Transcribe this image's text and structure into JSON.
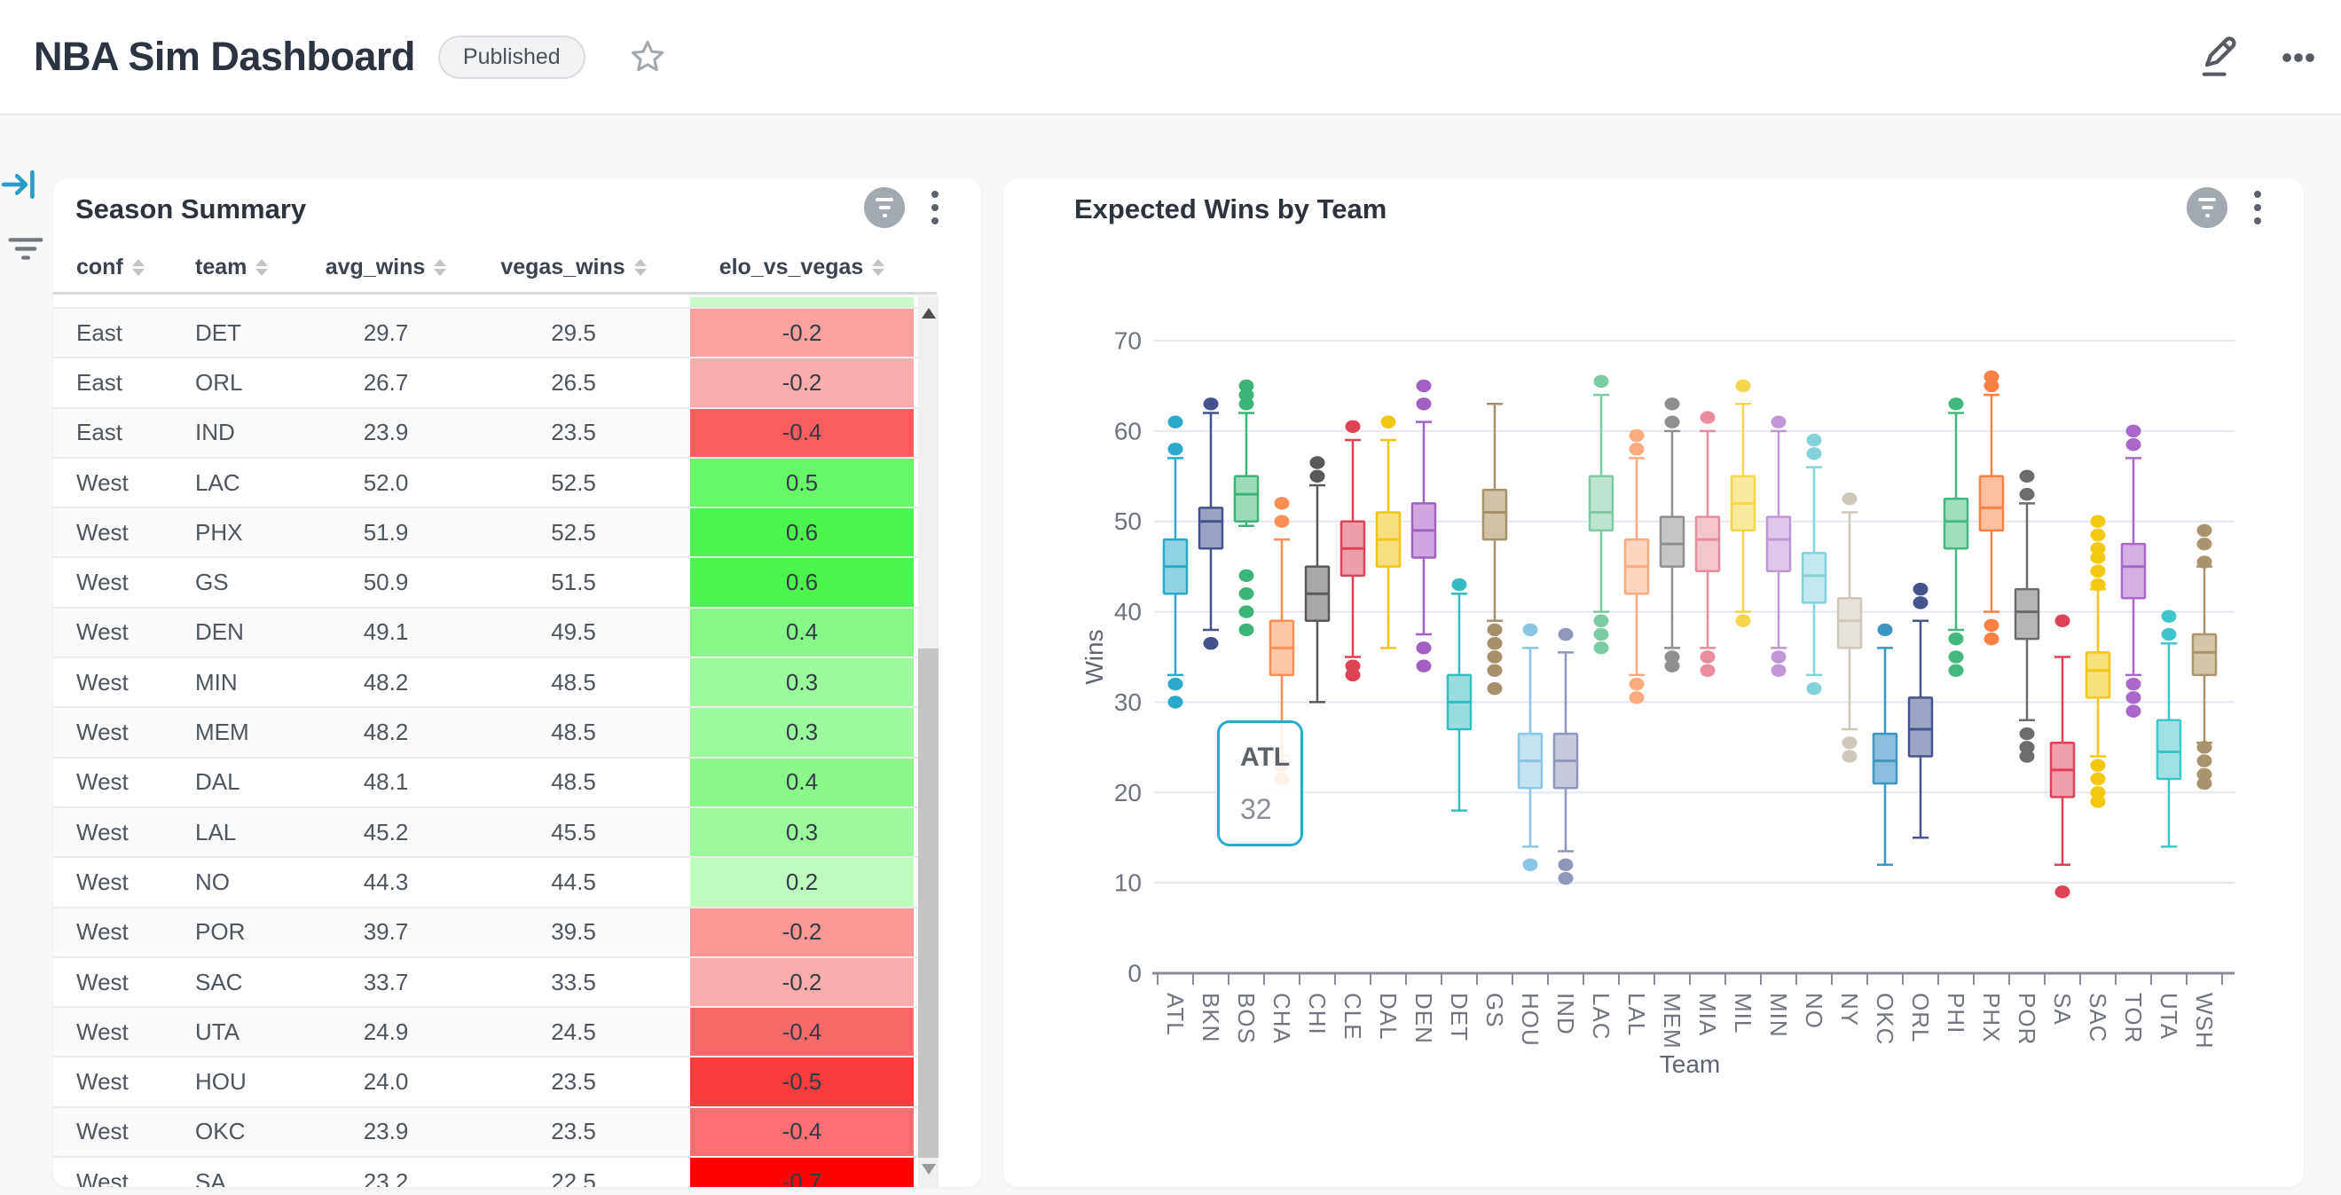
{
  "header": {
    "title": "NBA Sim Dashboard",
    "badge": "Published"
  },
  "table_panel": {
    "title": "Season Summary",
    "columns": [
      {
        "label": "conf"
      },
      {
        "label": "team"
      },
      {
        "label": "avg_wins"
      },
      {
        "label": "vegas_wins"
      },
      {
        "label": "elo_vs_vegas"
      }
    ],
    "partial_top_color": "#c9fac9",
    "rows": [
      {
        "conf": "East",
        "team": "DET",
        "avg_wins": "29.7",
        "vegas_wins": "29.5",
        "elo_vs_vegas": "-0.2",
        "color": "#f9a1a1"
      },
      {
        "conf": "East",
        "team": "ORL",
        "avg_wins": "26.7",
        "vegas_wins": "26.5",
        "elo_vs_vegas": "-0.2",
        "color": "#fbadad"
      },
      {
        "conf": "East",
        "team": "IND",
        "avg_wins": "23.9",
        "vegas_wins": "23.5",
        "elo_vs_vegas": "-0.4",
        "color": "#fa5d5d"
      },
      {
        "conf": "West",
        "team": "LAC",
        "avg_wins": "52.0",
        "vegas_wins": "52.5",
        "elo_vs_vegas": "0.5",
        "color": "#68f768"
      },
      {
        "conf": "West",
        "team": "PHX",
        "avg_wins": "51.9",
        "vegas_wins": "52.5",
        "elo_vs_vegas": "0.6",
        "color": "#4ef44e"
      },
      {
        "conf": "West",
        "team": "GS",
        "avg_wins": "50.9",
        "vegas_wins": "51.5",
        "elo_vs_vegas": "0.6",
        "color": "#4ef44e"
      },
      {
        "conf": "West",
        "team": "DEN",
        "avg_wins": "49.1",
        "vegas_wins": "49.5",
        "elo_vs_vegas": "0.4",
        "color": "#87f987"
      },
      {
        "conf": "West",
        "team": "MIN",
        "avg_wins": "48.2",
        "vegas_wins": "48.5",
        "elo_vs_vegas": "0.3",
        "color": "#9bfa9b"
      },
      {
        "conf": "West",
        "team": "MEM",
        "avg_wins": "48.2",
        "vegas_wins": "48.5",
        "elo_vs_vegas": "0.3",
        "color": "#9bfa9b"
      },
      {
        "conf": "West",
        "team": "DAL",
        "avg_wins": "48.1",
        "vegas_wins": "48.5",
        "elo_vs_vegas": "0.4",
        "color": "#8af98a"
      },
      {
        "conf": "West",
        "team": "LAL",
        "avg_wins": "45.2",
        "vegas_wins": "45.5",
        "elo_vs_vegas": "0.3",
        "color": "#9cfa9c"
      },
      {
        "conf": "West",
        "team": "NO",
        "avg_wins": "44.3",
        "vegas_wins": "44.5",
        "elo_vs_vegas": "0.2",
        "color": "#bdfcbd"
      },
      {
        "conf": "West",
        "team": "POR",
        "avg_wins": "39.7",
        "vegas_wins": "39.5",
        "elo_vs_vegas": "-0.2",
        "color": "#fa9898"
      },
      {
        "conf": "West",
        "team": "SAC",
        "avg_wins": "33.7",
        "vegas_wins": "33.5",
        "elo_vs_vegas": "-0.2",
        "color": "#fbacac"
      },
      {
        "conf": "West",
        "team": "UTA",
        "avg_wins": "24.9",
        "vegas_wins": "24.5",
        "elo_vs_vegas": "-0.4",
        "color": "#fa6a6a"
      },
      {
        "conf": "West",
        "team": "HOU",
        "avg_wins": "24.0",
        "vegas_wins": "23.5",
        "elo_vs_vegas": "-0.5",
        "color": "#fb3c3c"
      },
      {
        "conf": "West",
        "team": "OKC",
        "avg_wins": "23.9",
        "vegas_wins": "23.5",
        "elo_vs_vegas": "-0.4",
        "color": "#fa7070"
      },
      {
        "conf": "West",
        "team": "SA",
        "avg_wins": "23.2",
        "vegas_wins": "22.5",
        "elo_vs_vegas": "-0.7",
        "color": "#fe0101"
      }
    ]
  },
  "chart_panel": {
    "title": "Expected Wins by Team",
    "tooltip": {
      "team": "ATL",
      "value": "32"
    }
  },
  "chart_data": {
    "type": "box",
    "title": "Expected Wins by Team",
    "xlabel": "Team",
    "ylabel": "Wins",
    "ylim": [
      0,
      70
    ],
    "yticks": [
      0,
      10,
      20,
      30,
      40,
      50,
      60,
      70
    ],
    "grid": true,
    "tooltip": {
      "team": "ATL",
      "value": 32
    },
    "teams": [
      {
        "name": "ATL",
        "color": "#2ca8cb",
        "fill": "#8ed3e5",
        "q1": 42,
        "median": 45,
        "q3": 48,
        "lo": 33,
        "hi": 57,
        "out_hi": [
          58,
          61
        ],
        "out_lo": [
          32,
          30
        ]
      },
      {
        "name": "BKN",
        "color": "#44518b",
        "fill": "#9ba4c4",
        "q1": 47,
        "median": 50,
        "q3": 51.5,
        "lo": 38,
        "hi": 62,
        "out_hi": [
          63
        ],
        "out_lo": [
          36.5
        ]
      },
      {
        "name": "BOS",
        "color": "#3cb478",
        "fill": "#9bdcba",
        "q1": 50,
        "median": 53,
        "q3": 55,
        "lo": 49.5,
        "hi": 62,
        "out_hi": [
          63,
          64,
          65
        ],
        "out_lo": [
          44,
          42,
          40,
          38
        ]
      },
      {
        "name": "CHA",
        "color": "#fb8e55",
        "fill": "#fdc7a5",
        "q1": 33,
        "median": 36,
        "q3": 39,
        "lo": 24,
        "hi": 48,
        "out_hi": [
          50,
          52
        ],
        "out_lo": [
          23,
          21.5
        ]
      },
      {
        "name": "CHI",
        "color": "#595959",
        "fill": "#a8a8a8",
        "q1": 39,
        "median": 42,
        "q3": 45,
        "lo": 30,
        "hi": 54,
        "out_hi": [
          55,
          56.5
        ],
        "out_lo": []
      },
      {
        "name": "CLE",
        "color": "#dd4257",
        "fill": "#eda0ab",
        "q1": 44,
        "median": 47,
        "q3": 50,
        "lo": 35,
        "hi": 59,
        "out_hi": [
          60.5
        ],
        "out_lo": [
          34,
          33
        ]
      },
      {
        "name": "DAL",
        "color": "#f3c513",
        "fill": "#f8de7e",
        "q1": 45,
        "median": 48,
        "q3": 51,
        "lo": 36,
        "hi": 59,
        "out_hi": [
          61
        ],
        "out_lo": []
      },
      {
        "name": "DEN",
        "color": "#a060c4",
        "fill": "#cfa8e1",
        "q1": 46,
        "median": 49,
        "q3": 52,
        "lo": 37.5,
        "hi": 61,
        "out_hi": [
          63,
          65
        ],
        "out_lo": [
          36,
          34
        ]
      },
      {
        "name": "DET",
        "color": "#35bcbf",
        "fill": "#99dedf",
        "q1": 27,
        "median": 30,
        "q3": 33,
        "lo": 18,
        "hi": 42,
        "out_hi": [
          43
        ],
        "out_lo": []
      },
      {
        "name": "GS",
        "color": "#a5906b",
        "fill": "#cfc2a9",
        "q1": 48,
        "median": 51,
        "q3": 53.5,
        "lo": 39,
        "hi": 63,
        "out_hi": [],
        "out_lo": [
          38,
          36.5,
          35,
          33.5,
          31.5
        ]
      },
      {
        "name": "HOU",
        "color": "#8ac6e2",
        "fill": "#c4e2f0",
        "q1": 20.5,
        "median": 23.5,
        "q3": 26.5,
        "lo": 14,
        "hi": 36,
        "out_hi": [
          38
        ],
        "out_lo": [
          12
        ]
      },
      {
        "name": "IND",
        "color": "#8f97bb",
        "fill": "#c6cada",
        "q1": 20.5,
        "median": 23.5,
        "q3": 26.5,
        "lo": 13.5,
        "hi": 35.5,
        "out_hi": [
          37.5
        ],
        "out_lo": [
          12,
          10.5
        ]
      },
      {
        "name": "LAC",
        "color": "#7bcba4",
        "fill": "#bce4d1",
        "q1": 49,
        "median": 51,
        "q3": 55,
        "lo": 40,
        "hi": 64,
        "out_hi": [
          65.5
        ],
        "out_lo": [
          39,
          37.5,
          36
        ]
      },
      {
        "name": "LAL",
        "color": "#fcab80",
        "fill": "#fdd5bf",
        "q1": 42,
        "median": 45,
        "q3": 48,
        "lo": 33,
        "hi": 57,
        "out_hi": [
          58,
          59.5
        ],
        "out_lo": [
          32,
          30.5
        ]
      },
      {
        "name": "MEM",
        "color": "#8f8f8f",
        "fill": "#c6c6c6",
        "q1": 45,
        "median": 47.5,
        "q3": 50.5,
        "lo": 36,
        "hi": 60,
        "out_hi": [
          61,
          63
        ],
        "out_lo": [
          35,
          34
        ]
      },
      {
        "name": "MIA",
        "color": "#e98c9d",
        "fill": "#f3c5cd",
        "q1": 44.5,
        "median": 48,
        "q3": 50.5,
        "lo": 36,
        "hi": 60,
        "out_hi": [
          61.5
        ],
        "out_lo": [
          35,
          33.5
        ]
      },
      {
        "name": "MIL",
        "color": "#f6d54a",
        "fill": "#faea9e",
        "q1": 49,
        "median": 52,
        "q3": 55,
        "lo": 40,
        "hi": 63,
        "out_hi": [
          65
        ],
        "out_lo": [
          39
        ]
      },
      {
        "name": "MIN",
        "color": "#bf97d7",
        "fill": "#dfc9ea",
        "q1": 44.5,
        "median": 48,
        "q3": 50.5,
        "lo": 36,
        "hi": 60,
        "out_hi": [
          61
        ],
        "out_lo": [
          35,
          33.5
        ]
      },
      {
        "name": "NO",
        "color": "#83d2da",
        "fill": "#c1e8ec",
        "q1": 41,
        "median": 44,
        "q3": 46.5,
        "lo": 33,
        "hi": 56,
        "out_hi": [
          57.5,
          59
        ],
        "out_lo": [
          31.5
        ]
      },
      {
        "name": "NY",
        "color": "#cfc7ba",
        "fill": "#e6e2d9",
        "q1": 36,
        "median": 39,
        "q3": 41.5,
        "lo": 27,
        "hi": 51,
        "out_hi": [
          52.5
        ],
        "out_lo": [
          25.5,
          24
        ]
      },
      {
        "name": "OKC",
        "color": "#3e96c3",
        "fill": "#89bedd",
        "q1": 21,
        "median": 23.5,
        "q3": 26.5,
        "lo": 12,
        "hi": 36,
        "out_hi": [
          38
        ],
        "out_lo": []
      },
      {
        "name": "ORL",
        "color": "#46538d",
        "fill": "#9da6c5",
        "q1": 24,
        "median": 27,
        "q3": 30.5,
        "lo": 15,
        "hi": 39,
        "out_hi": [
          41,
          42.5
        ],
        "out_lo": []
      },
      {
        "name": "PHI",
        "color": "#43b87e",
        "fill": "#a0dfbe",
        "q1": 47,
        "median": 50,
        "q3": 52.5,
        "lo": 38,
        "hi": 62,
        "out_hi": [
          63
        ],
        "out_lo": [
          37,
          35,
          33.5
        ]
      },
      {
        "name": "PHX",
        "color": "#fb8046",
        "fill": "#fdbf9e",
        "q1": 49,
        "median": 51.5,
        "q3": 55,
        "lo": 40,
        "hi": 64,
        "out_hi": [
          65,
          66
        ],
        "out_lo": [
          38.5,
          37
        ]
      },
      {
        "name": "POR",
        "color": "#6c6c6c",
        "fill": "#b5b5b5",
        "q1": 37,
        "median": 40,
        "q3": 42.5,
        "lo": 28,
        "hi": 52,
        "out_hi": [
          53,
          55
        ],
        "out_lo": [
          26.5,
          25,
          24
        ]
      },
      {
        "name": "SA",
        "color": "#df4258",
        "fill": "#efa0ac",
        "q1": 19.5,
        "median": 22.5,
        "q3": 25.5,
        "lo": 12,
        "hi": 35,
        "out_hi": [
          39
        ],
        "out_lo": [
          9
        ]
      },
      {
        "name": "SAC",
        "color": "#f4c712",
        "fill": "#f9e07e",
        "q1": 30.5,
        "median": 33.5,
        "q3": 35.5,
        "lo": 24,
        "hi": 42.5,
        "out_hi": [
          50,
          48.5,
          47,
          46,
          44.5,
          43
        ],
        "out_lo": [
          23,
          21.5,
          20,
          19
        ]
      },
      {
        "name": "TOR",
        "color": "#a868ca",
        "fill": "#d3afe4",
        "q1": 41.5,
        "median": 45,
        "q3": 47.5,
        "lo": 33,
        "hi": 57,
        "out_hi": [
          58.5,
          60
        ],
        "out_lo": [
          32,
          30.5,
          29
        ]
      },
      {
        "name": "UTA",
        "color": "#3ec6c9",
        "fill": "#9ee2e4",
        "q1": 21.5,
        "median": 24.5,
        "q3": 28,
        "lo": 14,
        "hi": 36.5,
        "out_hi": [
          37.5,
          39.5
        ],
        "out_lo": []
      },
      {
        "name": "WSH",
        "color": "#a9946e",
        "fill": "#d4c6ac",
        "q1": 33,
        "median": 35.5,
        "q3": 37.5,
        "lo": 25.5,
        "hi": 45,
        "out_hi": [
          45.5,
          47.5,
          49
        ],
        "out_lo": [
          25,
          23.5,
          22,
          21
        ]
      }
    ]
  }
}
